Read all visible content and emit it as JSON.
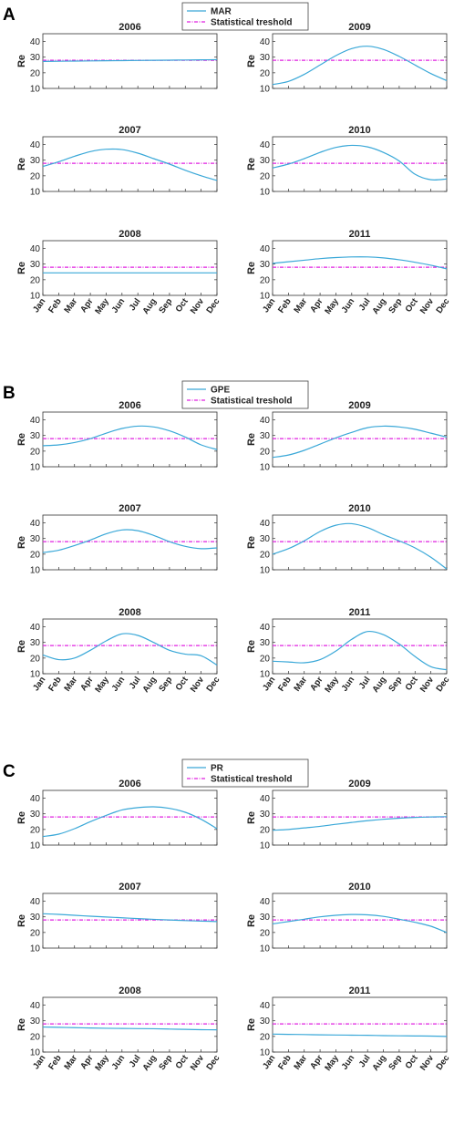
{
  "colors": {
    "series": "#3aa8d8",
    "threshold": "#e020e0",
    "axis": "#333333"
  },
  "chart_data": [
    {
      "panel": "A",
      "legend": [
        "MAR",
        "Statistical treshold"
      ],
      "type": "line",
      "months": [
        "Jan",
        "Feb",
        "Mar",
        "Apr",
        "May",
        "Jun",
        "Jul",
        "Aug",
        "Sep",
        "Oct",
        "Nov",
        "Dec"
      ],
      "ylim": [
        10,
        45
      ],
      "yticks": [
        10,
        20,
        30,
        40
      ],
      "ylabel": "Re",
      "threshold": 28,
      "subplots": [
        {
          "title": "2006",
          "values": [
            27.3,
            27.4,
            27.5,
            27.6,
            27.7,
            27.8,
            27.9,
            28.0,
            28.1,
            28.2,
            28.3,
            28.4
          ]
        },
        {
          "title": "2009",
          "values": [
            12.5,
            14.5,
            19,
            25,
            31,
            35.5,
            37,
            35,
            30.5,
            25,
            19.5,
            15
          ]
        },
        {
          "title": "2007",
          "values": [
            26,
            29,
            32.5,
            35.5,
            37,
            36.8,
            34.5,
            31,
            27.5,
            23.5,
            20,
            17
          ]
        },
        {
          "title": "2010",
          "values": [
            25,
            27.5,
            31,
            35,
            38.2,
            39.5,
            38.5,
            35,
            29.5,
            21,
            17.5,
            18
          ]
        },
        {
          "title": "2008",
          "values": [
            24.4,
            24.4,
            24.4,
            24.4,
            24.4,
            24.4,
            24.4,
            24.4,
            24.4,
            24.4,
            24.4,
            24.4
          ]
        },
        {
          "title": "2011",
          "values": [
            30.5,
            31.5,
            32.5,
            33.5,
            34.2,
            34.6,
            34.6,
            34,
            32.8,
            31.2,
            29.3,
            27
          ]
        }
      ]
    },
    {
      "panel": "B",
      "legend": [
        "GPE",
        "Statistical treshold"
      ],
      "type": "line",
      "months": [
        "Jan",
        "Feb",
        "Mar",
        "Apr",
        "May",
        "Jun",
        "Jul",
        "Aug",
        "Sep",
        "Oct",
        "Nov",
        "Dec"
      ],
      "ylim": [
        10,
        45
      ],
      "yticks": [
        10,
        20,
        30,
        40
      ],
      "ylabel": "Re",
      "threshold": 28,
      "subplots": [
        {
          "title": "2006",
          "values": [
            23.5,
            24,
            25.5,
            28,
            31.5,
            34.5,
            36,
            35.5,
            33,
            29,
            24,
            21
          ]
        },
        {
          "title": "2009",
          "values": [
            16,
            17.5,
            20.5,
            24.5,
            28.5,
            32,
            35,
            36,
            35.5,
            34,
            31.5,
            29
          ]
        },
        {
          "title": "2007",
          "values": [
            21,
            22.5,
            25.5,
            29,
            33,
            35.5,
            35,
            32,
            28,
            25,
            23.5,
            24
          ]
        },
        {
          "title": "2010",
          "values": [
            20,
            23.5,
            28.5,
            34.5,
            38.5,
            39.5,
            37,
            32.5,
            28.5,
            24,
            18,
            10.5
          ]
        },
        {
          "title": "2008",
          "values": [
            22,
            19,
            20,
            25,
            31,
            35.5,
            34.5,
            30,
            25,
            22.5,
            21.5,
            15.5
          ]
        },
        {
          "title": "2011",
          "values": [
            18,
            17.5,
            17,
            19,
            24.5,
            32,
            37,
            35,
            29,
            21,
            14.5,
            12.5
          ]
        }
      ]
    },
    {
      "panel": "C",
      "legend": [
        "PR",
        "Statistical treshold"
      ],
      "type": "line",
      "months": [
        "Jan",
        "Feb",
        "Mar",
        "Apr",
        "May",
        "Jun",
        "Jul",
        "Aug",
        "Sep",
        "Oct",
        "Nov",
        "Dec"
      ],
      "ylim": [
        10,
        45
      ],
      "yticks": [
        10,
        20,
        30,
        40
      ],
      "ylabel": "Re",
      "threshold": 28,
      "subplots": [
        {
          "title": "2006",
          "values": [
            15.5,
            17,
            20.5,
            25,
            29,
            32.5,
            34,
            34.5,
            33.5,
            31,
            26.5,
            20.5
          ]
        },
        {
          "title": "2009",
          "values": [
            19.5,
            20,
            21,
            22,
            23.3,
            24.5,
            25.6,
            26.5,
            27.2,
            27.7,
            28,
            28.2
          ]
        },
        {
          "title": "2007",
          "values": [
            32,
            31.6,
            31,
            30.4,
            29.9,
            29.4,
            28.9,
            28.4,
            28,
            27.6,
            27.3,
            27
          ]
        },
        {
          "title": "2010",
          "values": [
            25.5,
            27,
            28.5,
            30,
            31,
            31.5,
            31.3,
            30.3,
            28.5,
            26.5,
            24,
            20
          ]
        },
        {
          "title": "2008",
          "values": [
            26,
            25.8,
            25.6,
            25.4,
            25.2,
            25.1,
            25,
            24.9,
            24.7,
            24.5,
            24.3,
            24.2
          ]
        },
        {
          "title": "2011",
          "values": [
            21.5,
            21.3,
            21.2,
            21,
            20.9,
            20.8,
            20.7,
            20.5,
            20.4,
            20.3,
            20.2,
            20
          ]
        }
      ]
    }
  ]
}
